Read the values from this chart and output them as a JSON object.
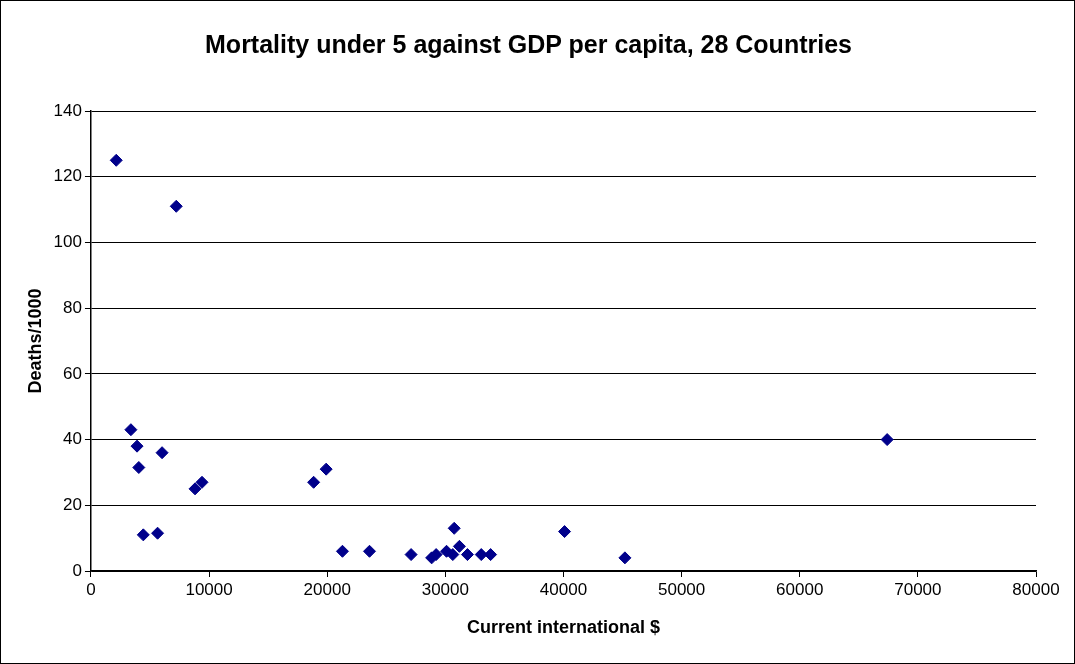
{
  "chart_data": {
    "type": "scatter",
    "title": "Mortality under 5 against GDP per capita, 28 Countries",
    "xlabel": "Current international $",
    "ylabel": "Deaths/1000",
    "x": [
      2140,
      3380,
      3900,
      4050,
      4430,
      5640,
      6020,
      7220,
      8810,
      9400,
      18850,
      19910,
      21290,
      23580,
      27100,
      28840,
      29220,
      30100,
      30630,
      30750,
      31190,
      31870,
      33040,
      33830,
      40090,
      45200,
      67400
    ],
    "series": [
      {
        "color": "#00008b",
        "values": [
          125,
          43,
          38,
          31.5,
          11,
          11.5,
          36,
          111,
          25,
          27,
          27,
          31,
          6,
          6,
          5,
          4,
          5,
          6,
          5,
          13,
          7.5,
          5,
          5,
          5,
          12,
          4,
          40
        ]
      }
    ],
    "xlim": [
      0,
      80000
    ],
    "xticks": [
      0,
      10000,
      20000,
      30000,
      40000,
      50000,
      60000,
      70000,
      80000
    ],
    "ylim": [
      0,
      140
    ],
    "yticks": [
      0,
      20,
      40,
      60,
      80,
      100,
      120,
      140
    ],
    "grid": "y",
    "legend": false,
    "marker": "diamond"
  }
}
